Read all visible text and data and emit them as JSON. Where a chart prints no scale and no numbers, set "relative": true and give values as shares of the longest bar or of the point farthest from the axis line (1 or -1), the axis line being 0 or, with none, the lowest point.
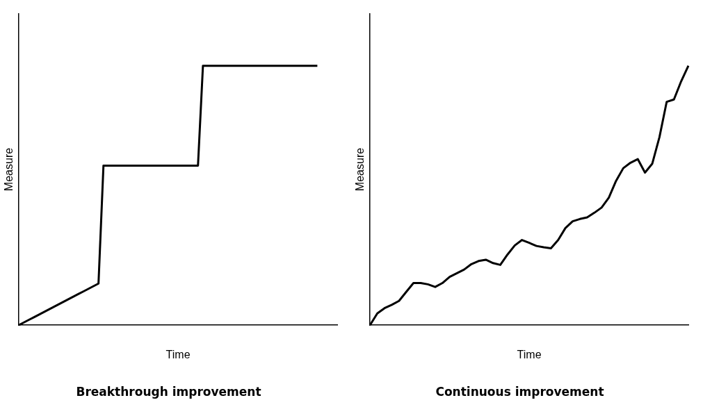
{
  "chart_data": [
    {
      "type": "line",
      "title": "Breakthrough improvement",
      "xlabel": "Time",
      "ylabel": "Measure",
      "relative": true,
      "marker": "none",
      "categories": [
        null,
        null,
        null,
        null,
        null,
        null,
        null,
        null,
        null,
        null,
        null,
        null,
        null,
        null,
        null,
        null,
        null,
        null,
        null,
        null,
        null,
        null,
        null,
        null,
        null,
        null,
        null,
        null,
        null,
        null,
        null,
        null,
        null,
        null,
        null,
        null,
        null,
        null,
        null,
        null,
        null,
        null,
        null,
        null,
        null,
        null,
        null,
        null,
        null,
        null,
        null,
        null,
        null,
        null,
        null,
        null,
        null,
        null,
        null,
        null,
        null,
        null,
        null,
        null,
        null
      ],
      "series": [
        {
          "color": "#000000",
          "values": [
            0,
            0.01,
            0.02,
            0.03,
            0.04,
            0.05,
            0.06,
            0.07,
            0.08,
            0.09,
            0.1,
            0.11,
            0.12,
            0.13,
            0.14,
            0.15,
            0.16,
            0.615,
            0.615,
            0.615,
            0.615,
            0.615,
            0.615,
            0.615,
            0.615,
            0.615,
            0.615,
            0.615,
            0.615,
            0.615,
            0.615,
            0.615,
            0.615,
            0.615,
            0.615,
            0.615,
            0.615,
            1,
            1,
            1,
            1,
            1,
            1,
            1,
            1,
            1,
            1,
            1,
            1,
            1,
            1,
            1,
            1,
            1,
            1,
            1,
            1,
            1,
            1,
            1,
            1,
            null,
            null,
            null,
            null
          ]
        }
      ]
    },
    {
      "type": "line",
      "title": "Continuous improvement",
      "xlabel": "Time",
      "ylabel": "Measure",
      "relative": true,
      "marker": "none",
      "categories": [
        null,
        null,
        null,
        null,
        null,
        null,
        null,
        null,
        null,
        null,
        null,
        null,
        null,
        null,
        null,
        null,
        null,
        null,
        null,
        null,
        null,
        null,
        null,
        null,
        null,
        null,
        null,
        null,
        null,
        null,
        null,
        null,
        null,
        null,
        null,
        null,
        null,
        null,
        null,
        null,
        null,
        null,
        null,
        null,
        null
      ],
      "series": [
        {
          "color": "#000000",
          "values": [
            0,
            0.045,
            0.065,
            0.078,
            0.093,
            0.128,
            0.162,
            0.162,
            0.157,
            0.147,
            0.162,
            0.186,
            0.2,
            0.214,
            0.235,
            0.247,
            0.252,
            0.239,
            0.232,
            0.272,
            0.307,
            0.328,
            0.317,
            0.305,
            0.3,
            0.296,
            0.328,
            0.374,
            0.4,
            0.409,
            0.415,
            0.433,
            0.453,
            0.491,
            0.556,
            0.605,
            0.626,
            0.64,
            0.588,
            0.622,
            0.725,
            0.861,
            0.87,
            0.94,
            1
          ]
        }
      ]
    }
  ]
}
